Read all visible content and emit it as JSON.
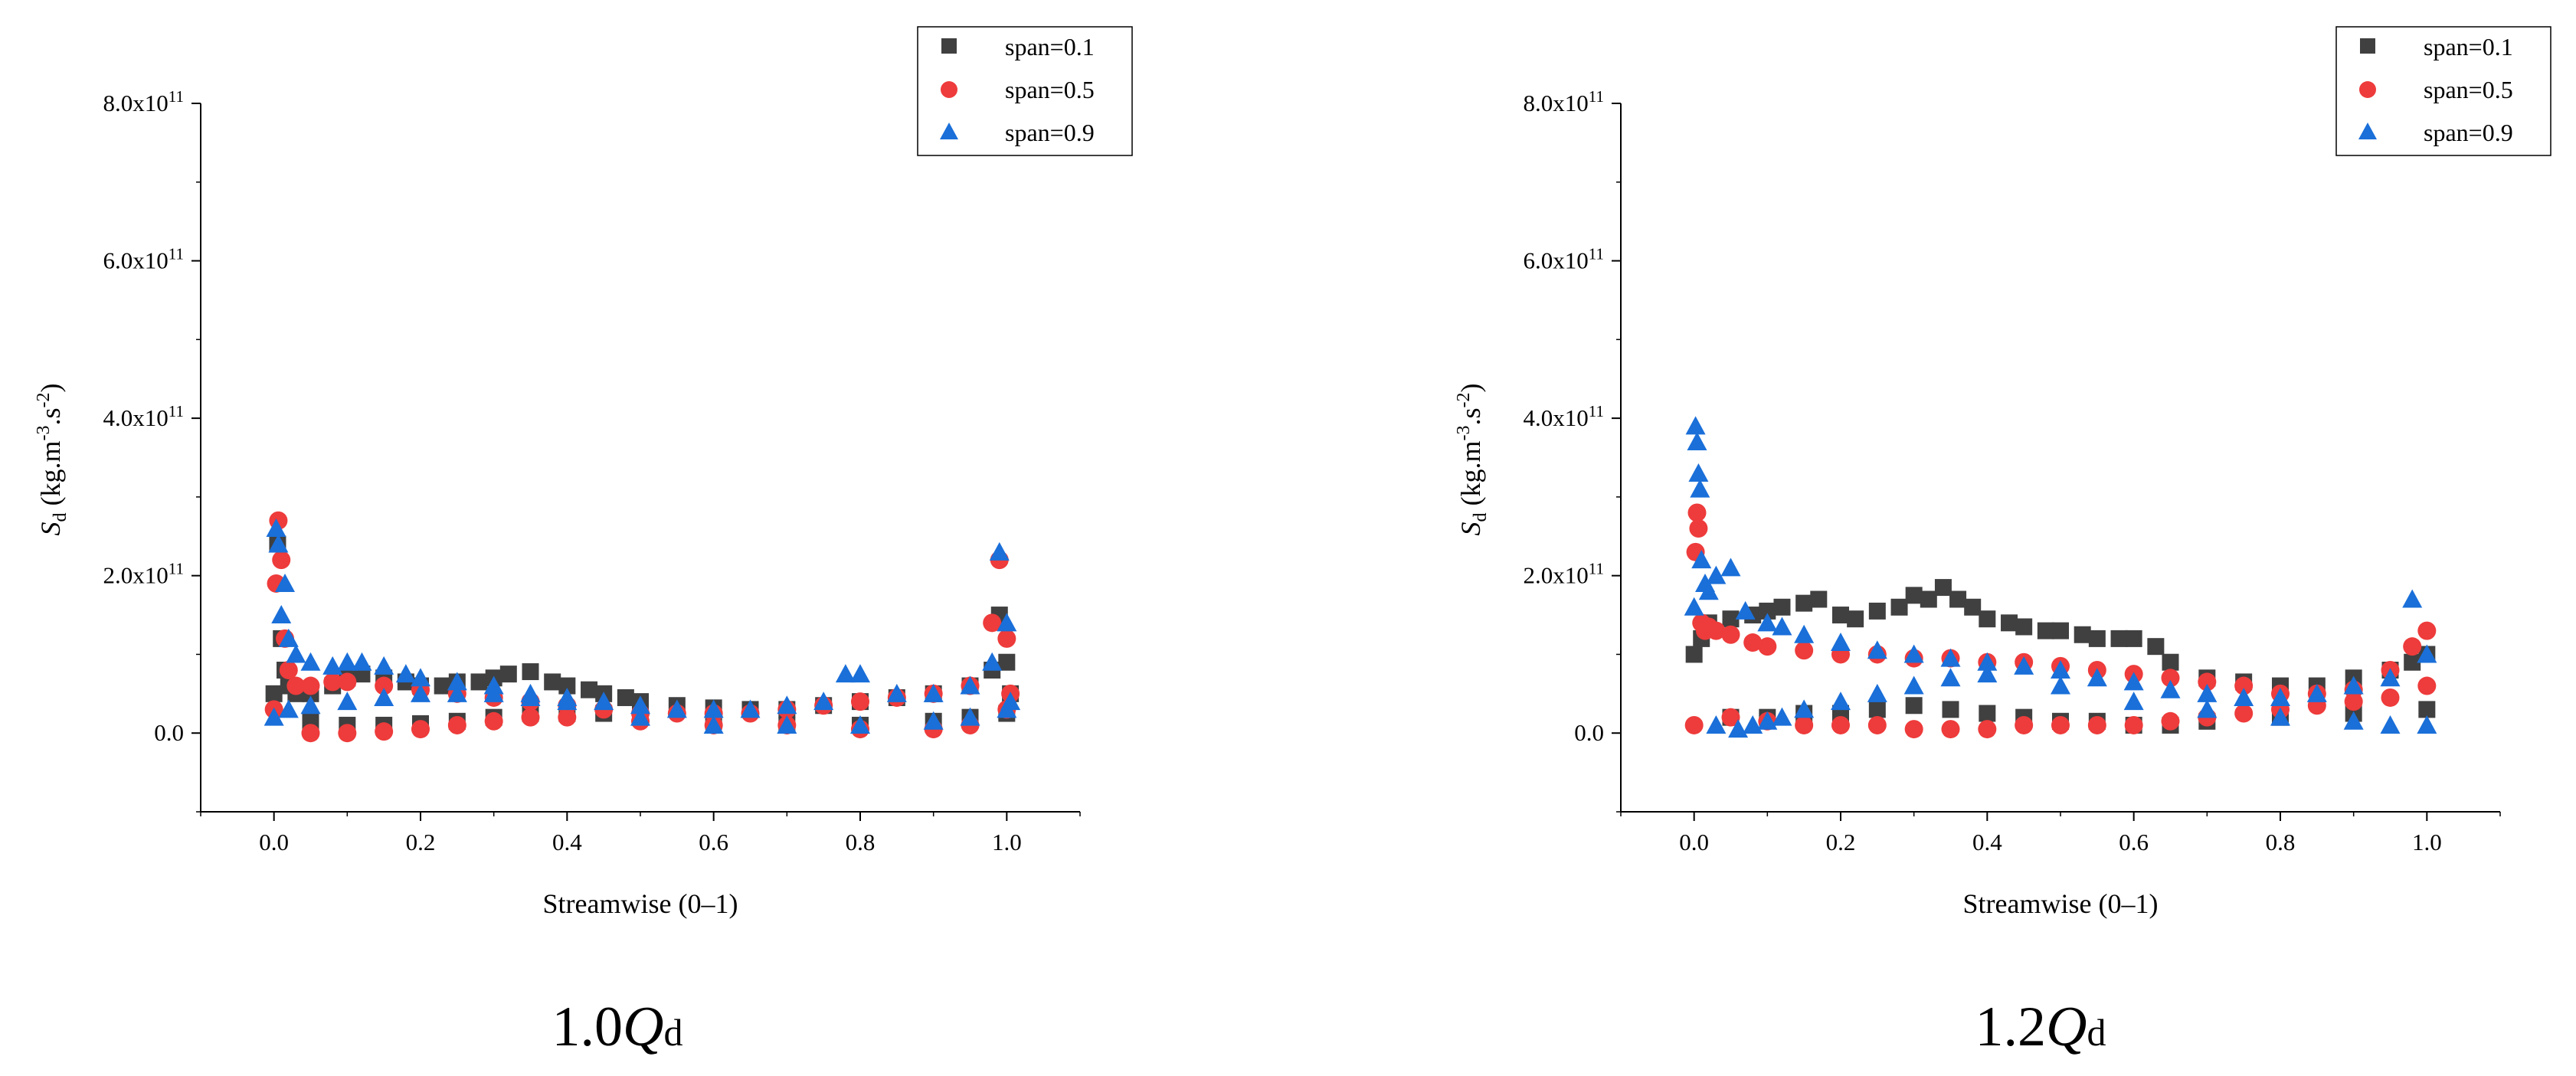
{
  "colors": {
    "span01": "#404040",
    "span05": "#ee3b3b",
    "span09": "#1a6fd9"
  },
  "chart_data": [
    {
      "type": "scatter",
      "caption": {
        "main": "1.0",
        "q": "Q",
        "sub": "d"
      },
      "xlabel": "Streamwise (0–1)",
      "ylabel": {
        "base": "S",
        "base_sub": "d",
        "unit_open": " (kg.m",
        "exp1": "-3",
        "mid": ".s",
        "exp2": "-2",
        "unit_close": ")"
      },
      "xlim": [
        -0.1,
        1.1
      ],
      "ylim": [
        -100000000000.0,
        800000000000.0
      ],
      "x_ticks": [
        {
          "value": 0.0,
          "label": "0.0"
        },
        {
          "value": 0.2,
          "label": "0.2"
        },
        {
          "value": 0.4,
          "label": "0.4"
        },
        {
          "value": 0.6,
          "label": "0.6"
        },
        {
          "value": 0.8,
          "label": "0.8"
        },
        {
          "value": 1.0,
          "label": "1.0"
        }
      ],
      "y_ticks": [
        {
          "value": 0,
          "label": "0.0",
          "base": "",
          "exp": ""
        },
        {
          "value": 200000000000.0,
          "label": "",
          "base": "2.0x10",
          "exp": "11"
        },
        {
          "value": 400000000000.0,
          "label": "",
          "base": "4.0x10",
          "exp": "11"
        },
        {
          "value": 600000000000.0,
          "label": "",
          "base": "6.0x10",
          "exp": "11"
        },
        {
          "value": 800000000000.0,
          "label": "",
          "base": "8.0x10",
          "exp": "11"
        }
      ],
      "legend": [
        "span=0.1",
        "span=0.5",
        "span=0.9"
      ],
      "series": [
        {
          "name": "span=0.1",
          "marker": "square",
          "color": "#404040",
          "x": [
            0.0,
            0.005,
            0.01,
            0.015,
            0.02,
            0.03,
            0.05,
            0.08,
            0.1,
            0.12,
            0.15,
            0.18,
            0.2,
            0.23,
            0.25,
            0.28,
            0.3,
            0.32,
            0.35,
            0.38,
            0.4,
            0.43,
            0.45,
            0.48,
            0.5,
            0.55,
            0.6,
            0.65,
            0.7,
            0.75,
            0.8,
            0.85,
            0.9,
            0.95,
            0.98,
            0.99,
            1.0,
            1.005,
            0.05,
            0.1,
            0.15,
            0.2,
            0.25,
            0.3,
            0.35,
            0.4,
            0.45,
            0.5,
            0.6,
            0.7,
            0.8,
            0.9,
            0.95,
            1.0
          ],
          "y": [
            50000000000.0,
            240000000000.0,
            120000000000.0,
            80000000000.0,
            60000000000.0,
            50000000000.0,
            50000000000.0,
            60000000000.0,
            70000000000.0,
            75000000000.0,
            70000000000.0,
            65000000000.0,
            60000000000.0,
            60000000000.0,
            65000000000.0,
            65000000000.0,
            70000000000.0,
            75000000000.0,
            78000000000.0,
            65000000000.0,
            60000000000.0,
            55000000000.0,
            50000000000.0,
            45000000000.0,
            40000000000.0,
            35000000000.0,
            32000000000.0,
            30000000000.0,
            30000000000.0,
            35000000000.0,
            40000000000.0,
            45000000000.0,
            50000000000.0,
            60000000000.0,
            80000000000.0,
            150000000000.0,
            90000000000.0,
            50000000000.0,
            15000000000.0,
            10000000000.0,
            10000000000.0,
            12000000000.0,
            15000000000.0,
            20000000000.0,
            25000000000.0,
            25000000000.0,
            25000000000.0,
            20000000000.0,
            15000000000.0,
            10000000000.0,
            10000000000.0,
            15000000000.0,
            20000000000.0,
            25000000000.0
          ]
        },
        {
          "name": "span=0.5",
          "marker": "circle",
          "color": "#ee3b3b",
          "x": [
            0.0,
            0.003,
            0.006,
            0.01,
            0.015,
            0.02,
            0.03,
            0.05,
            0.08,
            0.1,
            0.15,
            0.2,
            0.25,
            0.3,
            0.35,
            0.4,
            0.45,
            0.5,
            0.55,
            0.6,
            0.65,
            0.7,
            0.75,
            0.8,
            0.85,
            0.9,
            0.95,
            0.98,
            0.99,
            1.0,
            1.005,
            0.05,
            0.1,
            0.15,
            0.2,
            0.25,
            0.3,
            0.35,
            0.4,
            0.5,
            0.6,
            0.7,
            0.8,
            0.9,
            0.95,
            1.0
          ],
          "y": [
            30000000000.0,
            190000000000.0,
            270000000000.0,
            220000000000.0,
            120000000000.0,
            80000000000.0,
            60000000000.0,
            60000000000.0,
            65000000000.0,
            65000000000.0,
            60000000000.0,
            55000000000.0,
            50000000000.0,
            45000000000.0,
            40000000000.0,
            35000000000.0,
            30000000000.0,
            25000000000.0,
            25000000000.0,
            25000000000.0,
            25000000000.0,
            30000000000.0,
            35000000000.0,
            40000000000.0,
            45000000000.0,
            50000000000.0,
            60000000000.0,
            140000000000.0,
            220000000000.0,
            120000000000.0,
            50000000000.0,
            0,
            0,
            2000000000.0,
            5000000000.0,
            10000000000.0,
            15000000000.0,
            20000000000.0,
            20000000000.0,
            15000000000.0,
            10000000000.0,
            10000000000.0,
            5000000000.0,
            5000000000.0,
            10000000000.0,
            30000000000.0
          ]
        },
        {
          "name": "span=0.9",
          "marker": "triangle",
          "color": "#1a6fd9",
          "x": [
            0.0,
            0.003,
            0.006,
            0.01,
            0.015,
            0.02,
            0.03,
            0.05,
            0.08,
            0.1,
            0.12,
            0.15,
            0.18,
            0.2,
            0.25,
            0.3,
            0.35,
            0.4,
            0.45,
            0.5,
            0.55,
            0.6,
            0.65,
            0.7,
            0.75,
            0.78,
            0.8,
            0.85,
            0.9,
            0.95,
            0.98,
            0.99,
            1.0,
            1.005,
            0.02,
            0.05,
            0.1,
            0.15,
            0.2,
            0.25,
            0.3,
            0.35,
            0.4,
            0.5,
            0.6,
            0.7,
            0.8,
            0.9,
            0.95,
            1.0
          ],
          "y": [
            20000000000.0,
            260000000000.0,
            240000000000.0,
            150000000000.0,
            190000000000.0,
            120000000000.0,
            100000000000.0,
            90000000000.0,
            85000000000.0,
            90000000000.0,
            90000000000.0,
            85000000000.0,
            75000000000.0,
            70000000000.0,
            65000000000.0,
            60000000000.0,
            50000000000.0,
            45000000000.0,
            40000000000.0,
            35000000000.0,
            30000000000.0,
            30000000000.0,
            30000000000.0,
            35000000000.0,
            40000000000.0,
            75000000000.0,
            75000000000.0,
            50000000000.0,
            50000000000.0,
            60000000000.0,
            90000000000.0,
            230000000000.0,
            140000000000.0,
            40000000000.0,
            30000000000.0,
            35000000000.0,
            40000000000.0,
            45000000000.0,
            50000000000.0,
            50000000000.0,
            50000000000.0,
            45000000000.0,
            40000000000.0,
            20000000000.0,
            10000000000.0,
            10000000000.0,
            10000000000.0,
            15000000000.0,
            20000000000.0,
            30000000000.0
          ]
        }
      ]
    },
    {
      "type": "scatter",
      "caption": {
        "main": "1.2",
        "q": "Q",
        "sub": "d"
      },
      "xlabel": "Streamwise (0–1)",
      "ylabel": {
        "base": "S",
        "base_sub": "d",
        "unit_open": " (kg.m",
        "exp1": "-3",
        "mid": ".s",
        "exp2": "-2",
        "unit_close": ")"
      },
      "xlim": [
        -0.1,
        1.1
      ],
      "ylim": [
        -100000000000.0,
        800000000000.0
      ],
      "x_ticks": [
        {
          "value": 0.0,
          "label": "0.0"
        },
        {
          "value": 0.2,
          "label": "0.2"
        },
        {
          "value": 0.4,
          "label": "0.4"
        },
        {
          "value": 0.6,
          "label": "0.6"
        },
        {
          "value": 0.8,
          "label": "0.8"
        },
        {
          "value": 1.0,
          "label": "1.0"
        }
      ],
      "y_ticks": [
        {
          "value": 0,
          "label": "0.0",
          "base": "",
          "exp": ""
        },
        {
          "value": 200000000000.0,
          "label": "",
          "base": "2.0x10",
          "exp": "11"
        },
        {
          "value": 400000000000.0,
          "label": "",
          "base": "4.0x10",
          "exp": "11"
        },
        {
          "value": 600000000000.0,
          "label": "",
          "base": "6.0x10",
          "exp": "11"
        },
        {
          "value": 800000000000.0,
          "label": "",
          "base": "8.0x10",
          "exp": "11"
        }
      ],
      "legend": [
        "span=0.1",
        "span=0.5",
        "span=0.9"
      ],
      "series": [
        {
          "name": "span=0.1",
          "marker": "square",
          "color": "#404040",
          "x": [
            0.0,
            0.01,
            0.02,
            0.05,
            0.08,
            0.1,
            0.12,
            0.15,
            0.17,
            0.2,
            0.22,
            0.25,
            0.28,
            0.3,
            0.32,
            0.34,
            0.36,
            0.38,
            0.4,
            0.43,
            0.45,
            0.48,
            0.5,
            0.53,
            0.55,
            0.58,
            0.6,
            0.63,
            0.65,
            0.7,
            0.75,
            0.8,
            0.85,
            0.9,
            0.95,
            0.98,
            1.0,
            0.05,
            0.1,
            0.15,
            0.2,
            0.25,
            0.3,
            0.35,
            0.4,
            0.45,
            0.5,
            0.55,
            0.6,
            0.65,
            0.7,
            0.8,
            0.9,
            1.0
          ],
          "y": [
            100000000000.0,
            120000000000.0,
            140000000000.0,
            145000000000.0,
            150000000000.0,
            155000000000.0,
            160000000000.0,
            165000000000.0,
            170000000000.0,
            150000000000.0,
            145000000000.0,
            155000000000.0,
            160000000000.0,
            175000000000.0,
            170000000000.0,
            185000000000.0,
            170000000000.0,
            160000000000.0,
            145000000000.0,
            140000000000.0,
            135000000000.0,
            130000000000.0,
            130000000000.0,
            125000000000.0,
            120000000000.0,
            120000000000.0,
            120000000000.0,
            110000000000.0,
            90000000000.0,
            70000000000.0,
            65000000000.0,
            60000000000.0,
            60000000000.0,
            70000000000.0,
            80000000000.0,
            90000000000.0,
            100000000000.0,
            20000000000.0,
            20000000000.0,
            25000000000.0,
            25000000000.0,
            30000000000.0,
            35000000000.0,
            30000000000.0,
            25000000000.0,
            20000000000.0,
            15000000000.0,
            15000000000.0,
            10000000000.0,
            10000000000.0,
            15000000000.0,
            20000000000.0,
            25000000000.0,
            30000000000.0
          ]
        },
        {
          "name": "span=0.5",
          "marker": "circle",
          "color": "#ee3b3b",
          "x": [
            0.0,
            0.002,
            0.004,
            0.006,
            0.01,
            0.015,
            0.02,
            0.03,
            0.05,
            0.08,
            0.1,
            0.15,
            0.2,
            0.25,
            0.3,
            0.35,
            0.4,
            0.45,
            0.5,
            0.55,
            0.6,
            0.65,
            0.7,
            0.75,
            0.8,
            0.85,
            0.9,
            0.95,
            0.98,
            1.0,
            0.05,
            0.1,
            0.15,
            0.2,
            0.25,
            0.3,
            0.35,
            0.4,
            0.45,
            0.5,
            0.55,
            0.6,
            0.65,
            0.7,
            0.75,
            0.8,
            0.85,
            0.9,
            0.95,
            1.0
          ],
          "y": [
            10000000000.0,
            230000000000.0,
            280000000000.0,
            260000000000.0,
            140000000000.0,
            130000000000.0,
            135000000000.0,
            130000000000.0,
            125000000000.0,
            115000000000.0,
            110000000000.0,
            105000000000.0,
            100000000000.0,
            100000000000.0,
            95000000000.0,
            95000000000.0,
            90000000000.0,
            90000000000.0,
            85000000000.0,
            80000000000.0,
            75000000000.0,
            70000000000.0,
            65000000000.0,
            60000000000.0,
            50000000000.0,
            50000000000.0,
            55000000000.0,
            80000000000.0,
            110000000000.0,
            130000000000.0,
            20000000000.0,
            15000000000.0,
            10000000000.0,
            10000000000.0,
            10000000000.0,
            5000000000.0,
            5000000000.0,
            5000000000.0,
            10000000000.0,
            10000000000.0,
            10000000000.0,
            10000000000.0,
            15000000000.0,
            20000000000.0,
            25000000000.0,
            30000000000.0,
            35000000000.0,
            40000000000.0,
            45000000000.0,
            60000000000.0
          ]
        },
        {
          "name": "span=0.9",
          "marker": "triangle",
          "color": "#1a6fd9",
          "x": [
            0.0,
            0.002,
            0.004,
            0.006,
            0.008,
            0.01,
            0.015,
            0.02,
            0.03,
            0.05,
            0.07,
            0.1,
            0.12,
            0.15,
            0.2,
            0.25,
            0.3,
            0.35,
            0.4,
            0.45,
            0.5,
            0.55,
            0.6,
            0.65,
            0.7,
            0.75,
            0.8,
            0.85,
            0.9,
            0.95,
            0.98,
            1.0,
            0.03,
            0.06,
            0.08,
            0.1,
            0.12,
            0.15,
            0.2,
            0.25,
            0.3,
            0.35,
            0.4,
            0.5,
            0.6,
            0.7,
            0.8,
            0.9,
            0.95,
            1.0
          ],
          "y": [
            160000000000.0,
            390000000000.0,
            370000000000.0,
            330000000000.0,
            310000000000.0,
            220000000000.0,
            190000000000.0,
            180000000000.0,
            200000000000.0,
            210000000000.0,
            155000000000.0,
            140000000000.0,
            135000000000.0,
            125000000000.0,
            115000000000.0,
            105000000000.0,
            100000000000.0,
            95000000000.0,
            90000000000.0,
            85000000000.0,
            80000000000.0,
            70000000000.0,
            65000000000.0,
            55000000000.0,
            50000000000.0,
            45000000000.0,
            45000000000.0,
            50000000000.0,
            60000000000.0,
            70000000000.0,
            170000000000.0,
            100000000000.0,
            10000000000.0,
            5000000000.0,
            10000000000.0,
            15000000000.0,
            20000000000.0,
            30000000000.0,
            40000000000.0,
            50000000000.0,
            60000000000.0,
            70000000000.0,
            75000000000.0,
            60000000000.0,
            40000000000.0,
            30000000000.0,
            20000000000.0,
            15000000000.0,
            10000000000.0,
            10000000000.0
          ]
        }
      ]
    }
  ]
}
